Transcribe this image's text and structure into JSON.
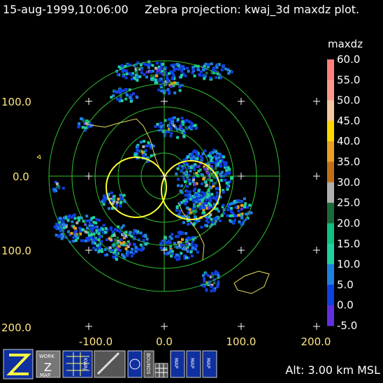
{
  "header": {
    "timestamp": "15-aug-1999,10:06:00",
    "title": "Zebra projection: kwaj_3d maxdz plot."
  },
  "colorbar": {
    "title": "maxdz",
    "labels": [
      "60.0",
      "55.0",
      "50.0",
      "45.0",
      "40.0",
      "35.0",
      "30.0",
      "25.0",
      "20.0",
      "15.0",
      "10.0",
      "5.0",
      "0.0",
      "-5.0"
    ],
    "colors": [
      "#ff8080",
      "#ff9a8a",
      "#f4c7a0",
      "#ffd700",
      "#e8a020",
      "#c0701a",
      "#b0b0b0",
      "#1a6a3a",
      "#10c080",
      "#20d0a0",
      "#2080e0",
      "#1040e0",
      "#6030e0",
      "#8000e0"
    ]
  },
  "axes": {
    "left": [
      "100.0",
      "0.0",
      "100.0",
      "200.0"
    ],
    "bottom": [
      "-100.0",
      "0.0",
      "100.0",
      "200.0"
    ]
  },
  "toolbar": {
    "work": "WORK",
    "z": "Z",
    "map": "MAP",
    "radar": "KWAJ",
    "bounds": "BOUNDS",
    "map2": "MAP",
    "map3": "MAP",
    "map4": "MAP"
  },
  "status": "Alt: 3.00 km MSL"
}
